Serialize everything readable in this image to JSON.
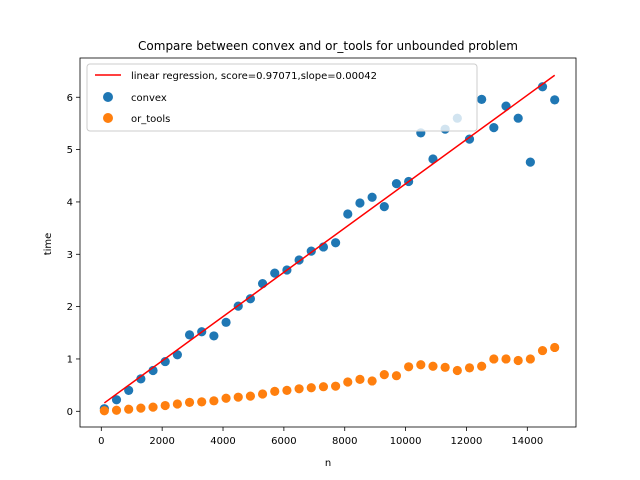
{
  "chart_data": {
    "type": "scatter",
    "title": "Compare between convex and or_tools for unbounded problem",
    "xlabel": "n",
    "ylabel": "time",
    "xlim": [
      -700,
      15600
    ],
    "ylim": [
      -0.3,
      6.75
    ],
    "xticks": [
      0,
      2000,
      4000,
      6000,
      8000,
      10000,
      12000,
      14000
    ],
    "yticks": [
      0,
      1,
      2,
      3,
      4,
      5,
      6
    ],
    "grid": false,
    "legend_position": "top-left",
    "colors": {
      "convex": "#1f77b4",
      "or_tools": "#ff7f0e",
      "regression": "#ff0000"
    },
    "regression": {
      "label": "linear regression, score=0.97071,slope=0.00042",
      "x": [
        100,
        14900
      ],
      "y": [
        0.16,
        6.42
      ]
    },
    "series": [
      {
        "name": "convex",
        "x": [
          100,
          500,
          900,
          1300,
          1700,
          2100,
          2500,
          2900,
          3300,
          3700,
          4100,
          4500,
          4900,
          5300,
          5700,
          6100,
          6500,
          6900,
          7300,
          7700,
          8100,
          8500,
          8900,
          9300,
          9700,
          10100,
          10500,
          10900,
          11300,
          11700,
          12100,
          12500,
          12900,
          13300,
          13700,
          14100,
          14500,
          14900
        ],
        "y": [
          0.05,
          0.22,
          0.4,
          0.62,
          0.78,
          0.95,
          1.08,
          1.46,
          1.52,
          1.44,
          1.7,
          2.01,
          2.15,
          2.44,
          2.64,
          2.7,
          2.89,
          3.06,
          3.14,
          3.22,
          3.77,
          3.98,
          4.09,
          3.91,
          4.35,
          4.39,
          5.32,
          4.82,
          5.39,
          5.6,
          5.2,
          5.96,
          5.42,
          5.83,
          5.6,
          4.76,
          6.2,
          5.95
        ]
      },
      {
        "name": "or_tools",
        "x": [
          100,
          500,
          900,
          1300,
          1700,
          2100,
          2500,
          2900,
          3300,
          3700,
          4100,
          4500,
          4900,
          5300,
          5700,
          6100,
          6500,
          6900,
          7300,
          7700,
          8100,
          8500,
          8900,
          9300,
          9700,
          10100,
          10500,
          10900,
          11300,
          11700,
          12100,
          12500,
          12900,
          13300,
          13700,
          14100,
          14500,
          14900
        ],
        "y": [
          0.01,
          0.02,
          0.04,
          0.06,
          0.08,
          0.11,
          0.14,
          0.17,
          0.18,
          0.2,
          0.25,
          0.27,
          0.29,
          0.33,
          0.38,
          0.4,
          0.43,
          0.45,
          0.47,
          0.48,
          0.56,
          0.61,
          0.58,
          0.7,
          0.68,
          0.85,
          0.89,
          0.86,
          0.84,
          0.78,
          0.83,
          0.86,
          1.0,
          1.0,
          0.97,
          1.0,
          1.16,
          1.22
        ]
      }
    ]
  }
}
